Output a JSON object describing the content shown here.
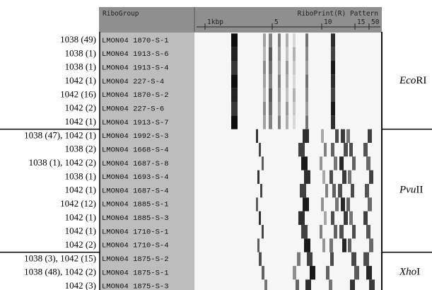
{
  "header": {
    "column_title": "RiboGroup",
    "pattern_title": "RiboPrint(R) Pattern",
    "scale": [
      "1kbp",
      "5",
      "10",
      "15",
      "50"
    ]
  },
  "groups": [
    {
      "enzyme": {
        "italic": "Eco",
        "roman": "RI"
      },
      "rows": [
        {
          "label": "1038 (49)",
          "ribogroup": "LMON04 1870-S-1"
        },
        {
          "label": "1038 (1)",
          "ribogroup": "LMON04 1913-S-6"
        },
        {
          "label": "1038 (1)",
          "ribogroup": "LMON04 1913-S-4"
        },
        {
          "label": "1042 (1)",
          "ribogroup": "LMON04 227-S-4"
        },
        {
          "label": "1042 (16)",
          "ribogroup": "LMON04 1870-S-2"
        },
        {
          "label": "1042 (2)",
          "ribogroup": "LMON04 227-S-6"
        },
        {
          "label": "1042 (1)",
          "ribogroup": "LMON04 1913-S-7"
        }
      ]
    },
    {
      "enzyme": {
        "italic": "Pvu",
        "roman": "II"
      },
      "rows": [
        {
          "label": "1038 (47), 1042 (1)",
          "ribogroup": "LMON04 1992-S-3"
        },
        {
          "label": "1038 (2)",
          "ribogroup": "LMON04 1668-S-4"
        },
        {
          "label": "1038 (1), 1042 (2)",
          "ribogroup": "LMON04 1687-S-8"
        },
        {
          "label": "1038 (1)",
          "ribogroup": "LMON04 1693-S-4"
        },
        {
          "label": "1042 (1)",
          "ribogroup": "LMON04 1687-S-4"
        },
        {
          "label": "1042 (12)",
          "ribogroup": "LMON04 1885-S-1"
        },
        {
          "label": "1042 (1)",
          "ribogroup": "LMON04 1885-S-3"
        },
        {
          "label": "1042 (1)",
          "ribogroup": "LMON04 1710-S-1"
        },
        {
          "label": "1042 (2)",
          "ribogroup": "LMON04 1710-S-4"
        }
      ]
    },
    {
      "enzyme": {
        "italic": "Xho",
        "roman": "I"
      },
      "rows": [
        {
          "label": "1038 (3), 1042 (15)",
          "ribogroup": "LMON04 1875-S-2"
        },
        {
          "label": "1038 (48), 1042 (2)",
          "ribogroup": "LMON04 1875-S-1"
        },
        {
          "label": "1042 (3)",
          "ribogroup": "LMON04 1875-S-3"
        }
      ]
    }
  ]
}
